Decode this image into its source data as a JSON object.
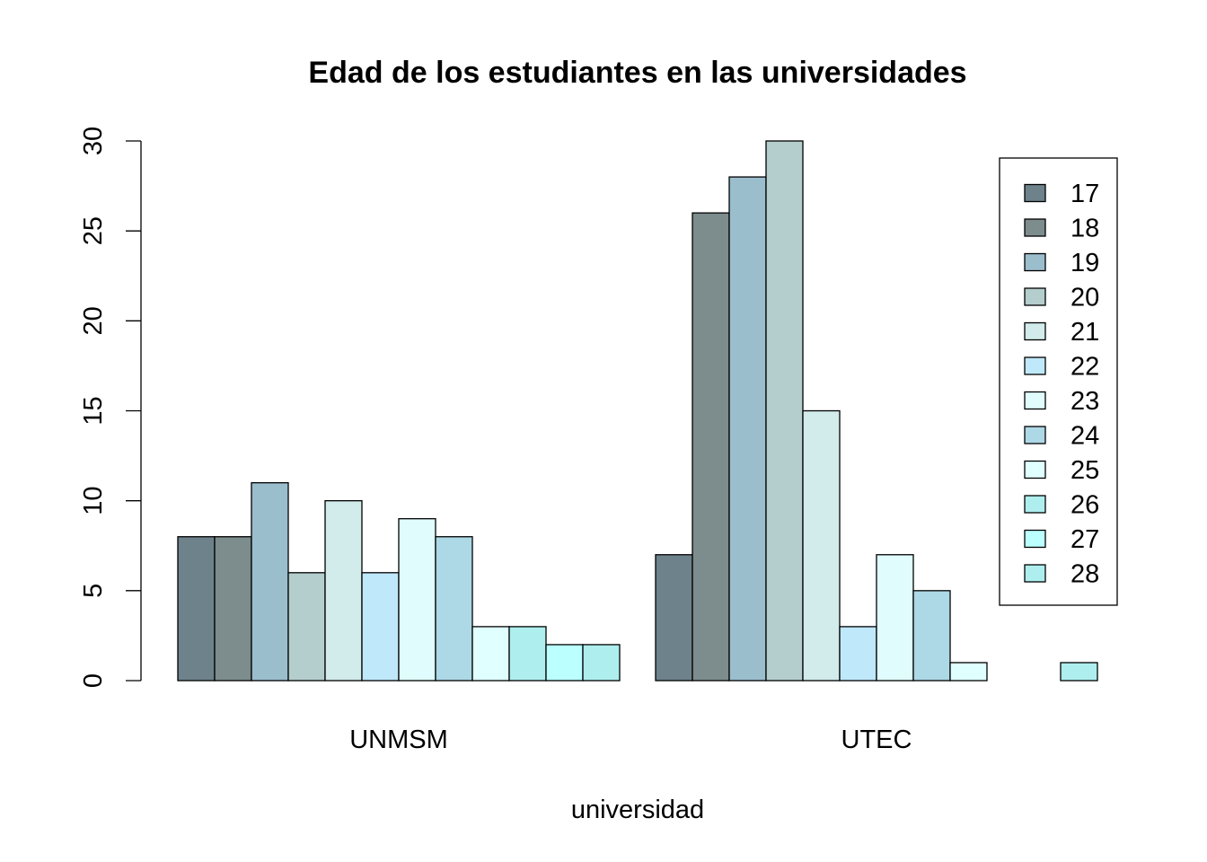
{
  "chart_data": {
    "type": "bar",
    "title": "Edad de los estudiantes en las universidades",
    "xlabel": "universidad",
    "ylabel": "",
    "ylim": [
      0,
      30
    ],
    "yticks": [
      "0",
      "5",
      "10",
      "15",
      "20",
      "25",
      "30"
    ],
    "categories": [
      "UNMSM",
      "UTEC"
    ],
    "legend_position": "top-right",
    "grid": false,
    "series": [
      {
        "name": "17",
        "color": "#6e828c",
        "values": [
          8,
          7
        ]
      },
      {
        "name": "18",
        "color": "#7d8c8c",
        "values": [
          8,
          26
        ]
      },
      {
        "name": "19",
        "color": "#9bbecd",
        "values": [
          11,
          28
        ]
      },
      {
        "name": "20",
        "color": "#b4cdcd",
        "values": [
          6,
          30
        ]
      },
      {
        "name": "21",
        "color": "#d2ebeb",
        "values": [
          10,
          15
        ]
      },
      {
        "name": "22",
        "color": "#bfe8fa",
        "values": [
          6,
          3
        ]
      },
      {
        "name": "23",
        "color": "#e0fcfc",
        "values": [
          9,
          7
        ]
      },
      {
        "name": "24",
        "color": "#add8e6",
        "values": [
          8,
          5
        ]
      },
      {
        "name": "25",
        "color": "#e0ffff",
        "values": [
          3,
          1
        ]
      },
      {
        "name": "26",
        "color": "#afeeee",
        "values": [
          3,
          0
        ]
      },
      {
        "name": "27",
        "color": "#bbffff",
        "values": [
          2,
          0
        ]
      },
      {
        "name": "28",
        "color": "#aeeeee",
        "values": [
          2,
          1
        ]
      }
    ]
  }
}
